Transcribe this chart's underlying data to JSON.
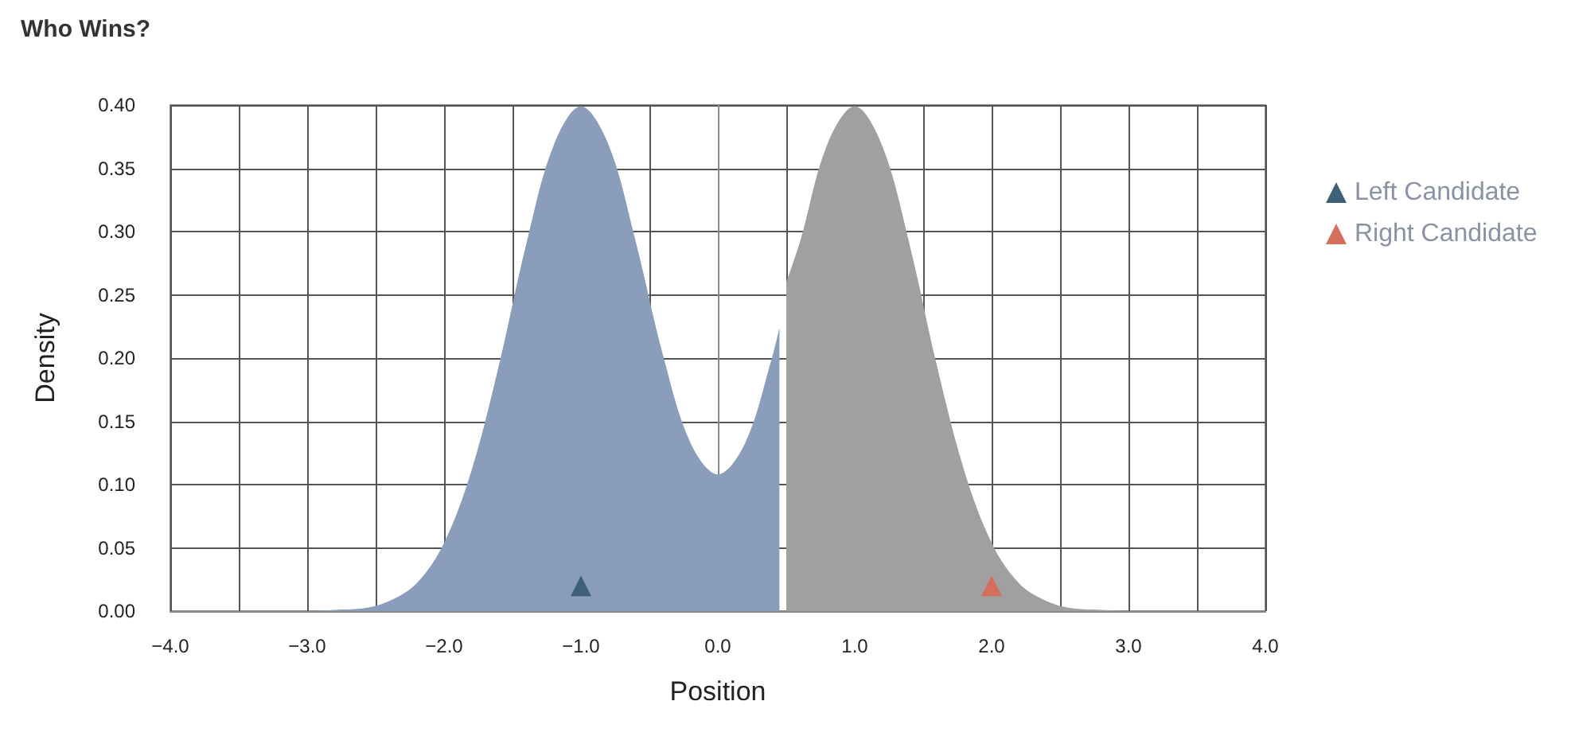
{
  "chart_data": {
    "type": "area",
    "title": "Who Wins?",
    "xlabel": "Position",
    "ylabel": "Density",
    "xlim": [
      -4,
      4
    ],
    "xticks": [
      {
        "value": -4,
        "label": "−4.0"
      },
      {
        "value": -3.5,
        "label": null
      },
      {
        "value": -3,
        "label": "−3.0"
      },
      {
        "value": -2.5,
        "label": null
      },
      {
        "value": -2,
        "label": "−2.0"
      },
      {
        "value": -1.5,
        "label": null
      },
      {
        "value": -1,
        "label": "−1.0"
      },
      {
        "value": -0.5,
        "label": null
      },
      {
        "value": 0,
        "label": "0.0"
      },
      {
        "value": 0.5,
        "label": null
      },
      {
        "value": 1,
        "label": "1.0"
      },
      {
        "value": 1.5,
        "label": null
      },
      {
        "value": 2,
        "label": "2.0"
      },
      {
        "value": 2.5,
        "label": null
      },
      {
        "value": 3,
        "label": "3.0"
      },
      {
        "value": 3.5,
        "label": null
      },
      {
        "value": 4,
        "label": "4.0"
      }
    ],
    "ylim": [
      0,
      0.4
    ],
    "yticks": [
      {
        "value": 0,
        "label": "0.00"
      },
      {
        "value": 0.05,
        "label": "0.05"
      },
      {
        "value": 0.1,
        "label": "0.10"
      },
      {
        "value": 0.15,
        "label": "0.15"
      },
      {
        "value": 0.2,
        "label": "0.20"
      },
      {
        "value": 0.25,
        "label": "0.25"
      },
      {
        "value": 0.3,
        "label": "0.30"
      },
      {
        "value": 0.35,
        "label": "0.35"
      },
      {
        "value": 0.4,
        "label": "0.40"
      }
    ],
    "grid": true,
    "legend": "right",
    "series": [
      {
        "color": "#8a9dba",
        "x": [
          -4,
          -3.5,
          -3,
          -2.8,
          -2.6,
          -2.4,
          -2.2,
          -2,
          -1.8,
          -1.6,
          -1.4,
          -1.2,
          -1,
          -0.8,
          -0.6,
          -0.4,
          -0.2,
          0,
          0.2,
          0.4,
          0.45
        ],
        "values": [
          0,
          0,
          0,
          0.001,
          0.002,
          0.008,
          0.022,
          0.054,
          0.111,
          0.194,
          0.29,
          0.368,
          0.399,
          0.369,
          0.292,
          0.202,
          0.133,
          0.108,
          0.133,
          0.202,
          0.224
        ]
      },
      {
        "color": "#a0a0a0",
        "x": [
          0.5,
          0.6,
          0.8,
          1,
          1.2,
          1.4,
          1.6,
          1.8,
          2,
          2.2,
          2.4,
          2.6,
          2.8,
          3,
          3.5,
          4
        ],
        "values": [
          0.26,
          0.292,
          0.369,
          0.399,
          0.368,
          0.29,
          0.194,
          0.111,
          0.054,
          0.022,
          0.008,
          0.002,
          0.001,
          0,
          0,
          0
        ]
      },
      {
        "type": "scatter",
        "name": "Left Candidate",
        "color": "#3e6178",
        "marker": "triangle",
        "x": [
          -1
        ],
        "values": [
          0.02
        ]
      },
      {
        "type": "scatter",
        "name": "Right Candidate",
        "color": "#d46f5e",
        "marker": "triangle",
        "x": [
          2
        ],
        "values": [
          0.02
        ]
      }
    ]
  }
}
